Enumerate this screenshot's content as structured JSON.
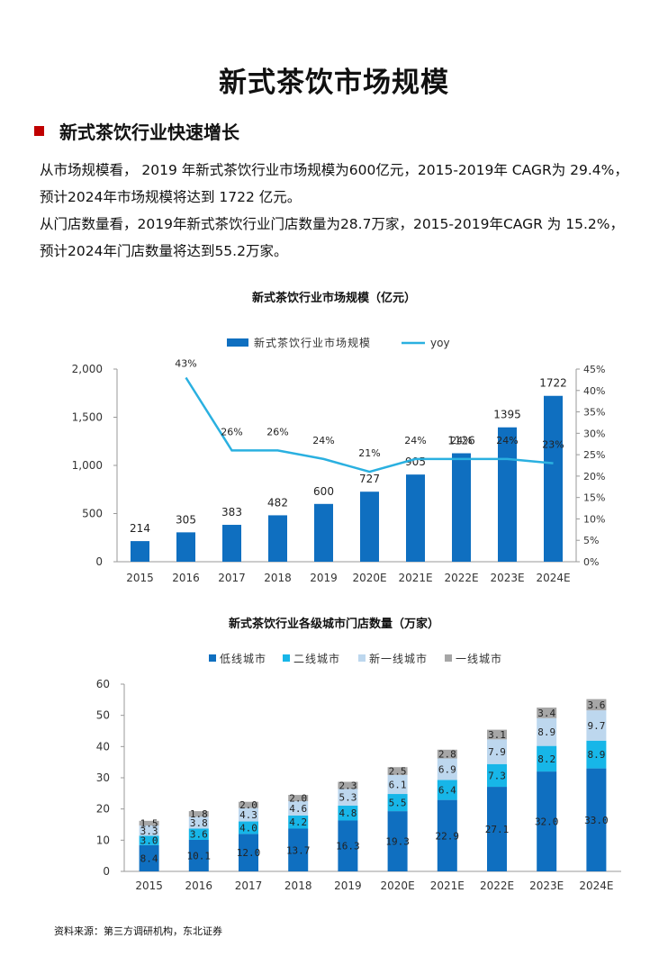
{
  "page": {
    "title": "新式茶饮市场规模",
    "section_heading": "新式茶饮行业快速增长",
    "paragraphs": [
      "从市场规模看， 2019 年新式茶饮行业市场规模为600亿元，2015-2019年 CAGR为 29.4%，",
      "预计2024年市场规模将达到 1722 亿元。",
      "从门店数量看，2019年新式茶饮行业门店数量为28.7万家，2015-2019年CAGR 为 15.2%，",
      "预计2024年门店数量将达到55.2万家。"
    ],
    "source": "资料来源：第三方调研机构，东北证券"
  },
  "colors": {
    "accent_red": "#c00000",
    "bar_blue": "#0f6fc0",
    "yoy_line": "#2ab0e0",
    "low_tier": "#0f6fc0",
    "second_tier": "#17b6e8",
    "new_first_tier": "#bdd7ee",
    "first_tier": "#a6a6a6"
  },
  "chart_data": [
    {
      "type": "bar",
      "title": "新式茶饮行业市场规模（亿元）",
      "categories": [
        "2015",
        "2016",
        "2017",
        "2018",
        "2019",
        "2020E",
        "2021E",
        "2022E",
        "2023E",
        "2024E"
      ],
      "series": [
        {
          "name": "新式茶饮行业市场规模",
          "axis": "left",
          "values": [
            214,
            305,
            383,
            482,
            600,
            727,
            905,
            1126,
            1395,
            1722
          ]
        },
        {
          "name": "yoy",
          "type": "line",
          "axis": "right",
          "values": [
            null,
            43,
            26,
            26,
            24,
            21,
            24,
            24,
            24,
            23
          ]
        }
      ],
      "value_labels": [
        "214",
        "305",
        "383",
        "482",
        "600",
        "727",
        "905",
        "1126",
        "1395",
        "1722"
      ],
      "yoy_labels": [
        "",
        "43%",
        "26%",
        "26%",
        "24%",
        "21%",
        "24%",
        "24%",
        "24%",
        "23%"
      ],
      "ylim": [
        0,
        2000
      ],
      "yticks": [
        "0",
        "500",
        "1,000",
        "1,500",
        "2,000"
      ],
      "y2lim": [
        0,
        45
      ],
      "y2ticks": [
        "0%",
        "5%",
        "10%",
        "15%",
        "20%",
        "25%",
        "30%",
        "35%",
        "40%",
        "45%"
      ],
      "legend": "top",
      "grid": false
    },
    {
      "type": "bar",
      "stacked": true,
      "title": "新式茶饮行业各级城市门店数量（万家）",
      "categories": [
        "2015",
        "2016",
        "2017",
        "2018",
        "2019",
        "2020E",
        "2021E",
        "2022E",
        "2023E",
        "2024E"
      ],
      "series": [
        {
          "name": "低线城市",
          "values": [
            8.4,
            10.1,
            12.0,
            13.7,
            16.3,
            19.3,
            22.9,
            27.1,
            32.0,
            33.0
          ],
          "labels": [
            "8.4",
            "10.1",
            "12.0",
            "13.7",
            "16.3",
            "19.3",
            "22.9",
            "27.1",
            "32.0",
            "33.0"
          ]
        },
        {
          "name": "二线城市",
          "values": [
            3.0,
            3.6,
            4.0,
            4.2,
            4.8,
            5.5,
            6.4,
            7.3,
            8.2,
            8.9
          ],
          "labels": [
            "3.0",
            "3.6",
            "4.0",
            "4.2",
            "4.8",
            "5.5",
            "6.4",
            "7.3",
            "8.2",
            "8.9"
          ]
        },
        {
          "name": "新一线城市",
          "values": [
            3.3,
            3.8,
            4.3,
            4.6,
            5.3,
            6.1,
            6.9,
            7.9,
            8.9,
            9.7
          ],
          "labels": [
            "3.3",
            "3.8",
            "4.3",
            "4.6",
            "5.3",
            "6.1",
            "6.9",
            "7.9",
            "8.9",
            "9.7"
          ]
        },
        {
          "name": "一线城市",
          "values": [
            1.5,
            1.8,
            2.0,
            2.0,
            2.3,
            2.5,
            2.8,
            3.1,
            3.4,
            3.6
          ],
          "labels": [
            "1.5",
            "1.8",
            "2.0",
            "2.0",
            "2.3",
            "2.5",
            "2.8",
            "3.1",
            "3.4",
            "3.6"
          ]
        }
      ],
      "ylim": [
        0,
        60
      ],
      "yticks": [
        "0",
        "10",
        "20",
        "30",
        "40",
        "50",
        "60"
      ],
      "legend": "top",
      "grid": false
    }
  ]
}
